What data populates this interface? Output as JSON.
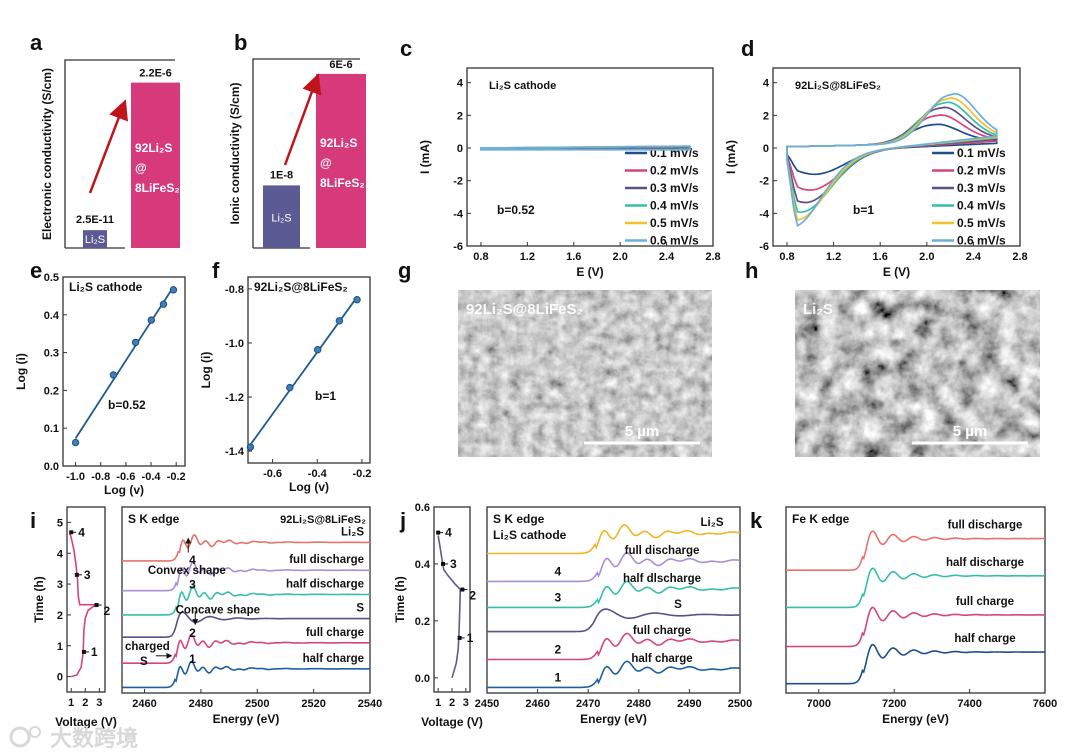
{
  "panel_labels": [
    "a",
    "b",
    "c",
    "d",
    "e",
    "f",
    "g",
    "h",
    "i",
    "j",
    "k"
  ],
  "watermark": "大数跨境",
  "images": {
    "g": {
      "label": "92Li₂S@8LiFeS₂",
      "scale_bar": "5 µm"
    },
    "h": {
      "label": "Li₂S",
      "scale_bar": "5 µm"
    }
  },
  "colors": {
    "pink": "#d63a7a",
    "purple": "#5c5a92",
    "arrow": "#c0141c"
  },
  "chart_data": [
    {
      "panel": "a",
      "type": "bar",
      "ylabel": "Electronic conductivity (S/cm)",
      "yscale": "log",
      "ylim_log10": [
        -11.2,
        -4.9
      ],
      "categories": [
        "Li₂S",
        "92Li₂S@8LiFeS₂"
      ],
      "values": [
        2.5e-11,
        2.2e-06
      ],
      "value_labels": [
        "2.5E-11",
        "2.2E-6"
      ],
      "bar_text": {
        "left": "Li₂S",
        "right": [
          "92Li₂S",
          "@",
          "8LiFeS₂"
        ]
      }
    },
    {
      "panel": "b",
      "type": "bar",
      "ylabel": "Ionic conductivity (S/cm)",
      "yscale": "log",
      "ylim_log10": [
        -9.56,
        -4.85
      ],
      "categories": [
        "Li₂S",
        "92Li₂S@8LiFeS₂"
      ],
      "values": [
        1e-08,
        6e-06
      ],
      "value_labels": [
        "1E-8",
        "6E-6"
      ],
      "bar_text": {
        "left": "Li₂S",
        "right": [
          "92Li₂S",
          "@",
          "8LiFeS₂"
        ]
      }
    },
    {
      "panel": "c",
      "type": "line",
      "title": "Li₂S cathode",
      "annotation": "b=0.52",
      "xlabel": "E (V)",
      "ylabel": "I (mA)",
      "xlim": [
        0.68,
        2.8
      ],
      "ylim": [
        -6,
        4.9
      ],
      "xticks": [
        "0.8",
        "1.2",
        "1.6",
        "2.0",
        "2.4",
        "2.8"
      ],
      "yticks": [
        "4",
        "2",
        "0",
        "-2",
        "-4",
        "-6"
      ],
      "series": [
        {
          "name": "0.1 mV/s",
          "anodic_peak": 0.05,
          "cathodic_peak": -0.06
        },
        {
          "name": "0.2 mV/s",
          "anodic_peak": 0.07,
          "cathodic_peak": -0.07
        },
        {
          "name": "0.3 mV/s",
          "anodic_peak": 0.08,
          "cathodic_peak": -0.08
        },
        {
          "name": "0.4 mV/s",
          "anodic_peak": 0.1,
          "cathodic_peak": -0.09
        },
        {
          "name": "0.5 mV/s",
          "anodic_peak": 0.11,
          "cathodic_peak": -0.1
        },
        {
          "name": "0.6 mV/s",
          "anodic_peak": 0.12,
          "cathodic_peak": -0.11
        }
      ]
    },
    {
      "panel": "d",
      "type": "line",
      "title": "92Li₂S@8LiFeS₂",
      "annotation": "b=1",
      "xlabel": "E (V)",
      "ylabel": "I (mA)",
      "xlim": [
        0.68,
        2.8
      ],
      "ylim": [
        -6,
        4.9
      ],
      "xticks": [
        "0.8",
        "1.2",
        "1.6",
        "2.0",
        "2.4",
        "2.8"
      ],
      "yticks": [
        "4",
        "2",
        "0",
        "-2",
        "-4",
        "-6"
      ],
      "series": [
        {
          "name": "0.1 mV/s",
          "anodic_peak": 1.15,
          "cathodic_peak": -1.4
        },
        {
          "name": "0.2 mV/s",
          "anodic_peak": 1.7,
          "cathodic_peak": -2.25
        },
        {
          "name": "0.3 mV/s",
          "anodic_peak": 2.15,
          "cathodic_peak": -2.9
        },
        {
          "name": "0.4 mV/s",
          "anodic_peak": 2.45,
          "cathodic_peak": -3.4
        },
        {
          "name": "0.5 mV/s",
          "anodic_peak": 2.7,
          "cathodic_peak": -3.8
        },
        {
          "name": "0.6 mV/s",
          "anodic_peak": 2.95,
          "cathodic_peak": -4.15
        }
      ]
    },
    {
      "panel": "e",
      "type": "scatter",
      "title": "Li₂S cathode",
      "annotation": "b=0.52",
      "xlabel": "Log (v)",
      "ylabel": "Log (i)",
      "xlim": [
        -1.1,
        -0.13
      ],
      "ylim": [
        0,
        0.5
      ],
      "xticks": [
        "-1.0",
        "-0.8",
        "-0.6",
        "-0.4",
        "-0.2"
      ],
      "yticks": [
        "0.0",
        "0.1",
        "0.2",
        "0.3",
        "0.4",
        "0.5"
      ],
      "x": [
        -1.0,
        -0.699,
        -0.523,
        -0.398,
        -0.301,
        -0.222
      ],
      "y": [
        0.062,
        0.241,
        0.327,
        0.386,
        0.428,
        0.466
      ],
      "fit": {
        "slope": 0.52,
        "x": [
          -1.0,
          -0.22
        ]
      }
    },
    {
      "panel": "f",
      "type": "scatter",
      "title": "92Li₂S@8LiFeS₂",
      "annotation": "b=1",
      "xlabel": "Log (v)",
      "ylabel": "Log (i)",
      "xlim": [
        -0.71,
        -0.164
      ],
      "ylim": [
        -1.444,
        -0.756
      ],
      "xticks": [
        "-0.6",
        "-0.4",
        "-0.2"
      ],
      "yticks": [
        "-0.8",
        "-1.0",
        "-1.2",
        "-1.4"
      ],
      "x": [
        -0.699,
        -0.523,
        -0.398,
        -0.301,
        -0.222
      ],
      "y": [
        -1.385,
        -1.165,
        -1.025,
        -0.918,
        -0.84
      ],
      "fit": {
        "slope": 1,
        "x": [
          -0.7,
          -0.22
        ]
      }
    },
    {
      "panel": "i-voltage",
      "type": "line",
      "xlabel": "Voltage (V)",
      "ylabel": "Time (h)",
      "xlim": [
        0.7,
        3.4
      ],
      "ylim": [
        -0.5,
        5.5
      ],
      "xticks": [
        "1",
        "2",
        "3"
      ],
      "yticks": [
        "0",
        "1",
        "2",
        "3",
        "4",
        "5"
      ],
      "x": [
        1.0,
        1.4,
        1.7,
        1.85,
        1.9,
        2.0,
        2.2,
        2.5,
        2.8,
        2.5,
        1.6,
        1.5,
        1.45,
        1.35,
        1.2,
        1.0,
        0.9
      ],
      "y": [
        0.0,
        0.05,
        0.3,
        0.8,
        1.5,
        1.9,
        2.15,
        2.25,
        2.32,
        2.33,
        2.33,
        2.6,
        3.1,
        3.6,
        4.1,
        4.5,
        4.65
      ],
      "markers": [
        {
          "label": "1",
          "x": 1.9,
          "y": 0.8
        },
        {
          "label": "2",
          "x": 2.8,
          "y": 2.32
        },
        {
          "label": "3",
          "x": 1.4,
          "y": 3.3
        },
        {
          "label": "4",
          "x": 1.0,
          "y": 4.68
        }
      ]
    },
    {
      "panel": "i-xanes",
      "type": "line",
      "title": "S K edge",
      "subtitle": "92Li₂S@8LiFeS₂",
      "xlabel": "Energy (eV)",
      "ylabel": "",
      "xlim": [
        2452,
        2540
      ],
      "ylim": [
        0,
        1
      ],
      "xticks": [
        "2460",
        "2480",
        "2500",
        "2520",
        "2540"
      ],
      "yticks": [],
      "series": [
        {
          "name": "half charge",
          "step": "1",
          "color": "#1f5ea0",
          "base": 0.03,
          "post": 0.13,
          "edge": 2471
        },
        {
          "name": "full charge",
          "step": "2",
          "color": "#d6457a",
          "base": 0.16,
          "post": 0.27,
          "edge": 2471
        },
        {
          "name": "S",
          "step": "",
          "color": "#5e4f86",
          "base": 0.3,
          "post": 0.4,
          "edge": 2471
        },
        {
          "name": "half discharge",
          "step": "3",
          "color": "#36bfa8",
          "base": 0.42,
          "post": 0.53,
          "edge": 2471.5
        },
        {
          "name": "full discharge",
          "step": "4",
          "color": "#a88fd6",
          "base": 0.55,
          "post": 0.66,
          "edge": 2471.5
        },
        {
          "name": "Li₂S",
          "step": "",
          "color": "#e8716d",
          "base": 0.71,
          "post": 0.81,
          "edge": 2472
        }
      ],
      "annotations": {
        "convex": "Convex shape",
        "concave": "Concave shape",
        "charged": "charged",
        "charged_s": "S"
      }
    },
    {
      "panel": "j-voltage",
      "type": "line",
      "xlabel": "Voltage (V)",
      "ylabel": "Time (h)",
      "xlim": [
        0.7,
        3.3
      ],
      "ylim": [
        -0.05,
        0.6
      ],
      "xticks": [
        "1",
        "2",
        "3"
      ],
      "yticks": [
        "0.0",
        "0.2",
        "0.4",
        "0.6"
      ],
      "x": [
        2.0,
        2.3,
        2.45,
        2.5,
        2.55,
        2.6,
        2.6,
        2.2,
        1.7,
        1.4,
        1.2,
        1.0
      ],
      "y": [
        0.0,
        0.05,
        0.1,
        0.15,
        0.22,
        0.31,
        0.31,
        0.33,
        0.36,
        0.38,
        0.44,
        0.5
      ],
      "markers": [
        {
          "label": "1",
          "x": 2.55,
          "y": 0.14
        },
        {
          "label": "2",
          "x": 2.75,
          "y": 0.31
        },
        {
          "label": "3",
          "x": 1.35,
          "y": 0.4
        },
        {
          "label": "4",
          "x": 1.0,
          "y": 0.51
        }
      ]
    },
    {
      "panel": "j-xanes",
      "type": "line",
      "title": "S K edge",
      "subtitle": "Li₂S cathode",
      "xlabel": "Energy (eV)",
      "ylabel": "",
      "xlim": [
        2450,
        2500
      ],
      "ylim": [
        0,
        1
      ],
      "xticks": [
        "2450",
        "2460",
        "2470",
        "2480",
        "2490",
        "2500"
      ],
      "yticks": [],
      "series": [
        {
          "name": "half charge",
          "step": "1",
          "color": "#1f5ea0",
          "base": 0.03,
          "post": 0.13,
          "edge": 2472
        },
        {
          "name": "full charge",
          "step": "2",
          "color": "#d6457a",
          "base": 0.18,
          "post": 0.28,
          "edge": 2472
        },
        {
          "name": "S",
          "step": "",
          "color": "#5e4f86",
          "base": 0.33,
          "post": 0.42,
          "edge": 2471
        },
        {
          "name": "half dlscharge",
          "step": "3",
          "color": "#36bfa8",
          "base": 0.46,
          "post": 0.56,
          "edge": 2472
        },
        {
          "name": "full discharge",
          "step": "4",
          "color": "#a88fd6",
          "base": 0.6,
          "post": 0.71,
          "edge": 2472
        },
        {
          "name": "Li₂S",
          "step": "",
          "color": "#f0b428",
          "base": 0.75,
          "post": 0.86,
          "edge": 2471.5
        }
      ]
    },
    {
      "panel": "k",
      "type": "line",
      "title": "Fe K edge",
      "xlabel": "Energy (eV)",
      "ylabel": "",
      "xlim": [
        6913,
        7600
      ],
      "ylim": [
        0,
        1
      ],
      "xticks": [
        "7000",
        "7200",
        "7400",
        "7600"
      ],
      "yticks": [],
      "series": [
        {
          "name": "half charge",
          "color": "#1f4e8c",
          "base": 0.05,
          "post": 0.22,
          "edge": 7118
        },
        {
          "name": "full charge",
          "color": "#d6457a",
          "base": 0.25,
          "post": 0.42,
          "edge": 7118
        },
        {
          "name": "half discharge",
          "color": "#36bfa8",
          "base": 0.46,
          "post": 0.63,
          "edge": 7118
        },
        {
          "name": "full discharge",
          "color": "#e8716d",
          "base": 0.66,
          "post": 0.83,
          "edge": 7118
        }
      ]
    }
  ]
}
